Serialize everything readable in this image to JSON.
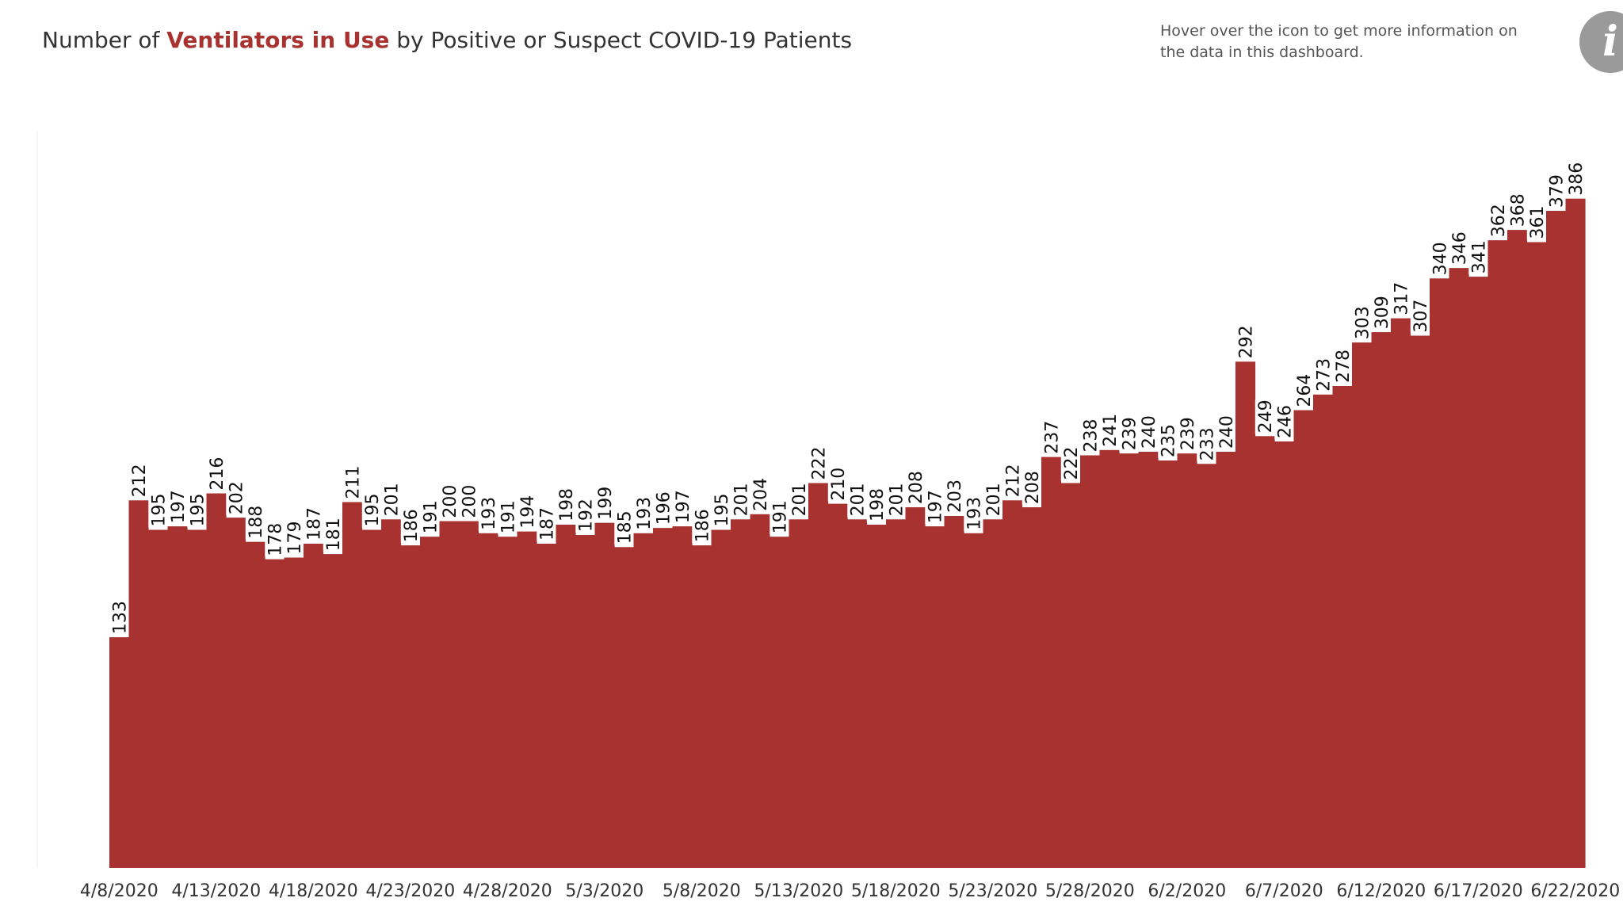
{
  "header": {
    "title_prefix": "Number of ",
    "title_highlight": "Ventilators in Use",
    "title_suffix": " by Positive or Suspect COVID-19 Patients",
    "note": "Hover over the icon to get more information on the data in this dashboard.",
    "info_icon_glyph": "i"
  },
  "colors": {
    "bar": "#a8322f",
    "highlight": "#a8322f"
  },
  "chart_data": {
    "type": "bar",
    "title": "Number of Ventilators in Use by Positive or Suspect COVID-19 Patients",
    "xlabel": "",
    "ylabel": "",
    "ylim": [
      0,
      410
    ],
    "grid": false,
    "x_tick_labels": [
      "4/8/2020",
      "4/13/2020",
      "4/18/2020",
      "4/23/2020",
      "4/28/2020",
      "5/3/2020",
      "5/8/2020",
      "5/13/2020",
      "5/18/2020",
      "5/23/2020",
      "5/28/2020",
      "6/2/2020",
      "6/7/2020",
      "6/12/2020",
      "6/17/2020",
      "6/22/2020"
    ],
    "tick_every": 5,
    "start_date": "4/8/2020",
    "values": [
      133,
      212,
      195,
      197,
      195,
      216,
      202,
      188,
      178,
      179,
      187,
      181,
      211,
      195,
      201,
      186,
      191,
      200,
      200,
      193,
      191,
      194,
      187,
      198,
      192,
      199,
      185,
      193,
      196,
      197,
      186,
      195,
      201,
      204,
      191,
      201,
      222,
      210,
      201,
      198,
      201,
      208,
      197,
      203,
      193,
      201,
      212,
      208,
      237,
      222,
      238,
      241,
      239,
      240,
      235,
      239,
      233,
      240,
      292,
      249,
      246,
      264,
      273,
      278,
      303,
      309,
      317,
      307,
      340,
      346,
      341,
      362,
      368,
      361,
      379,
      386
    ]
  }
}
